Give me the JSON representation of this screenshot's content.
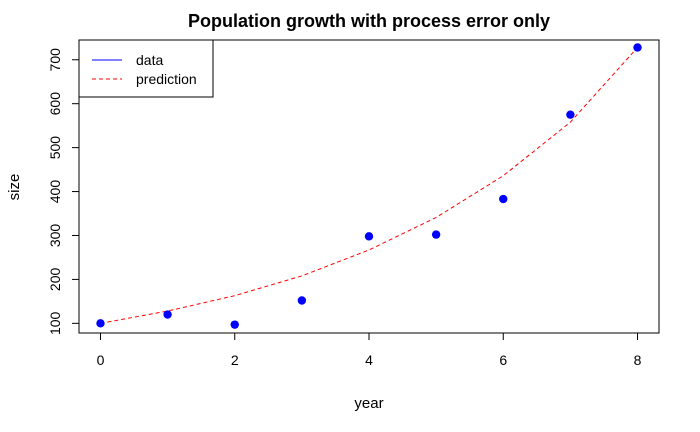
{
  "chart_data": {
    "type": "scatter",
    "title": "Population growth with process error only",
    "xlabel": "year",
    "ylabel": "size",
    "xlim": [
      -0.32,
      8.32
    ],
    "ylim": [
      78,
      745
    ],
    "x_ticks": [
      0,
      2,
      4,
      6,
      8
    ],
    "y_ticks": [
      100,
      200,
      300,
      400,
      500,
      600,
      700
    ],
    "grid": false,
    "legend_position": "top-left",
    "series": [
      {
        "name": "data",
        "kind": "points",
        "color": "#0000ff",
        "legend_style": "solid-line",
        "x": [
          0,
          1,
          2,
          3,
          4,
          5,
          6,
          7,
          8
        ],
        "y": [
          100,
          120,
          97,
          152,
          298,
          302,
          383,
          575,
          728
        ]
      },
      {
        "name": "prediction",
        "kind": "line",
        "color": "#ff0000",
        "line_style": "dashed",
        "x": [
          0,
          1,
          2,
          3,
          4,
          5,
          6,
          7,
          8
        ],
        "y": [
          100,
          128,
          163,
          208,
          267,
          341,
          436,
          558,
          728
        ]
      }
    ]
  }
}
